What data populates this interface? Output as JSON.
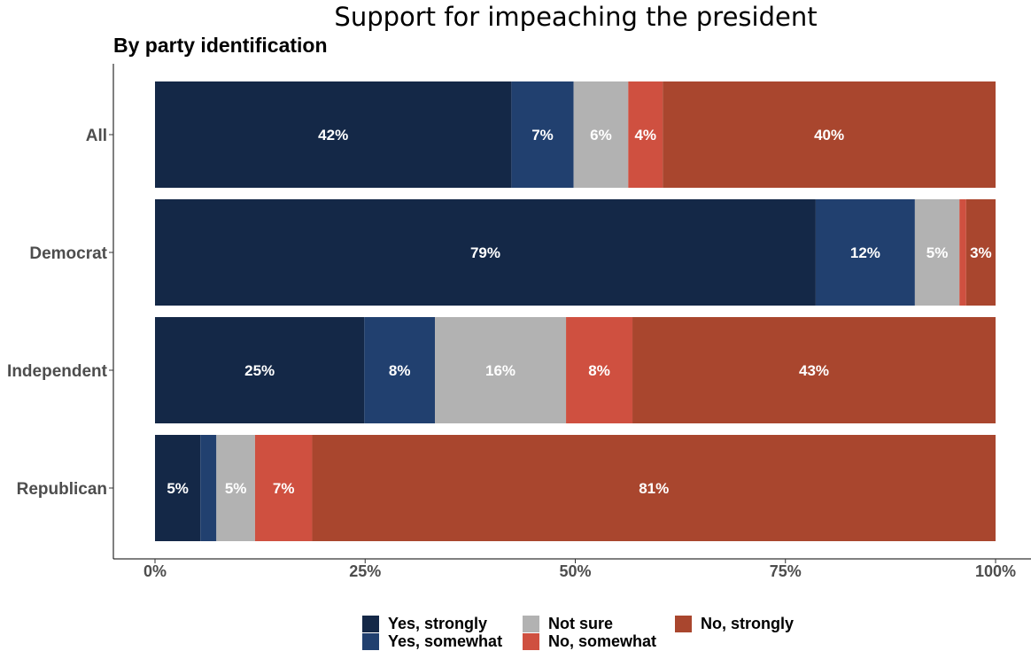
{
  "chart_data": {
    "type": "bar",
    "orientation": "horizontal",
    "stacked": true,
    "title": "Support for impeaching the president",
    "subtitle": "By party identification",
    "categories": [
      "All",
      "Democrat",
      "Independent",
      "Republican"
    ],
    "series": [
      {
        "name": "Yes, strongly",
        "color": "#142847",
        "values": [
          42.4,
          78.6,
          24.9,
          5.4
        ],
        "labels": [
          "42%",
          "79%",
          "25%",
          "5%"
        ]
      },
      {
        "name": "Yes, somewhat",
        "color": "#21406f",
        "values": [
          7.4,
          11.8,
          8.4,
          1.9
        ],
        "labels": [
          "7%",
          "12%",
          "8%",
          ""
        ]
      },
      {
        "name": "Not sure",
        "color": "#b2b2b2",
        "values": [
          6.5,
          5.3,
          15.6,
          4.6
        ],
        "labels": [
          "6%",
          "5%",
          "16%",
          "5%"
        ]
      },
      {
        "name": "No, somewhat",
        "color": "#cf5040",
        "values": [
          4.1,
          0.8,
          7.9,
          6.8
        ],
        "labels": [
          "4%",
          "",
          "8%",
          "7%"
        ]
      },
      {
        "name": "No, strongly",
        "color": "#a9462e",
        "values": [
          39.6,
          3.5,
          43.2,
          81.3
        ],
        "labels": [
          "40%",
          "3%",
          "43%",
          "81%"
        ]
      }
    ],
    "xlim": [
      0,
      100
    ],
    "xticks": [
      "0%",
      "25%",
      "50%",
      "75%",
      "100%"
    ],
    "xlabel": "",
    "ylabel": "",
    "grid": false,
    "legend_position": "bottom"
  }
}
